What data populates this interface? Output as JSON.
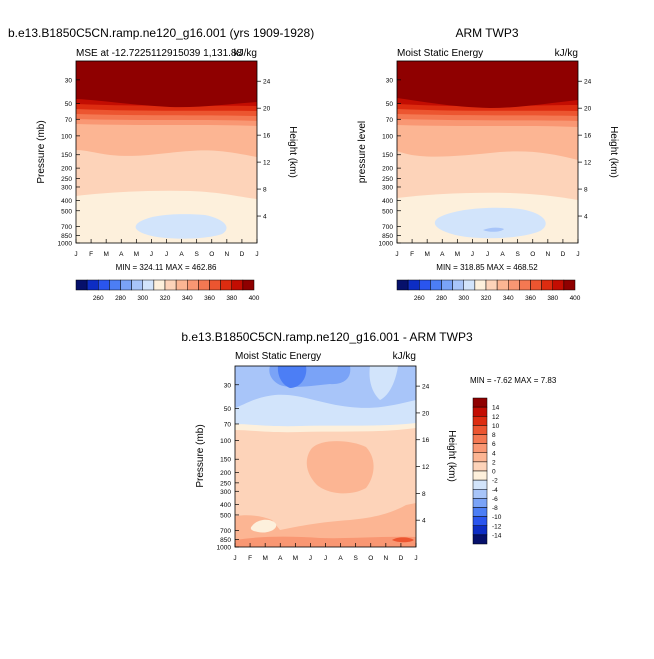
{
  "panels": [
    {
      "id": "model",
      "title": "b.e13.B1850C5CN.ramp.ne120_g16.001 (yrs 1909-1928)",
      "left_label": "MSE at -12.7225112915039 1,131.88",
      "right_label": "kJ/kg",
      "ylabel": "Pressure (mb)",
      "y2label": "Height (km)",
      "minmax": "MIN = 324.11  MAX = 462.86"
    },
    {
      "id": "obs",
      "title": "ARM TWP3",
      "left_label": "Moist Static Energy",
      "right_label": "kJ/kg",
      "ylabel": "pressure level",
      "y2label": "Height (km)",
      "minmax": "MIN = 318.85  MAX = 468.52"
    },
    {
      "id": "diff",
      "title": "b.e13.B1850C5CN.ramp.ne120_g16.001 - ARM TWP3",
      "left_label": "Moist Static Energy",
      "right_label": "kJ/kg",
      "ylabel": "Pressure (mb)",
      "y2label": "Height (km)",
      "minmax": "MIN =  -7.62  MAX =    7.83"
    }
  ],
  "chart_data": [
    {
      "type": "heatmap",
      "title": "b.e13.B1850C5CN.ramp.ne120_g16.001 (yrs 1909-1928)",
      "xlabel": "",
      "ylabel": "Pressure (mb)",
      "y2label": "Height (km)",
      "x_ticks": [
        "J",
        "F",
        "M",
        "A",
        "M",
        "J",
        "J",
        "A",
        "S",
        "O",
        "N",
        "D",
        "J"
      ],
      "y_ticks": [
        30,
        50,
        70,
        100,
        150,
        200,
        250,
        300,
        400,
        500,
        700,
        850,
        1000
      ],
      "y2_ticks": [
        24,
        20,
        16,
        12,
        8,
        4
      ],
      "ylim": [
        1000,
        20
      ],
      "units": "kJ/kg",
      "min": 324.11,
      "max": 462.86,
      "colorbar_levels": [
        260,
        280,
        300,
        320,
        340,
        360,
        380,
        400
      ],
      "colors": [
        "#06106b",
        "#0d2dc4",
        "#2a55ee",
        "#4c7ef5",
        "#7aa3f7",
        "#a8c5f9",
        "#d2e4fb",
        "#fdf0dc",
        "#fdd3b9",
        "#fcb593",
        "#f99773",
        "#f47852",
        "#ec5530",
        "#dd2c10",
        "#c30d02",
        "#8f0000"
      ]
    },
    {
      "type": "heatmap",
      "title": "ARM TWP3",
      "xlabel": "",
      "ylabel": "pressure level",
      "y2label": "Height (km)",
      "x_ticks": [
        "J",
        "F",
        "M",
        "A",
        "M",
        "J",
        "J",
        "A",
        "S",
        "O",
        "N",
        "D",
        "J"
      ],
      "y_ticks": [
        30,
        50,
        70,
        100,
        150,
        200,
        250,
        300,
        400,
        500,
        700,
        850,
        1000
      ],
      "y2_ticks": [
        24,
        20,
        16,
        12,
        8,
        4
      ],
      "ylim": [
        1000,
        20
      ],
      "units": "kJ/kg",
      "min": 318.85,
      "max": 468.52,
      "colorbar_levels": [
        260,
        280,
        300,
        320,
        340,
        360,
        380,
        400
      ],
      "colors": [
        "#06106b",
        "#0d2dc4",
        "#2a55ee",
        "#4c7ef5",
        "#7aa3f7",
        "#a8c5f9",
        "#d2e4fb",
        "#fdf0dc",
        "#fdd3b9",
        "#fcb593",
        "#f99773",
        "#f47852",
        "#ec5530",
        "#dd2c10",
        "#c30d02",
        "#8f0000"
      ]
    },
    {
      "type": "heatmap",
      "title": "b.e13.B1850C5CN.ramp.ne120_g16.001 - ARM TWP3",
      "xlabel": "",
      "ylabel": "Pressure (mb)",
      "y2label": "Height (km)",
      "x_ticks": [
        "J",
        "F",
        "M",
        "A",
        "M",
        "J",
        "J",
        "A",
        "S",
        "O",
        "N",
        "D",
        "J"
      ],
      "y_ticks": [
        30,
        50,
        70,
        100,
        150,
        200,
        250,
        300,
        400,
        500,
        700,
        850,
        1000
      ],
      "y2_ticks": [
        24,
        20,
        16,
        12,
        8,
        4
      ],
      "ylim": [
        1000,
        20
      ],
      "units": "kJ/kg",
      "min": -7.62,
      "max": 7.83,
      "colorbar_levels": [
        14,
        12,
        10,
        8,
        6,
        4,
        2,
        0,
        -2,
        -4,
        -6,
        -8,
        -10,
        -12,
        -14
      ],
      "colors": [
        "#8f0000",
        "#c30d02",
        "#dd2c10",
        "#ec5530",
        "#f47852",
        "#f99773",
        "#fcb593",
        "#fdd3b9",
        "#fdf0dc",
        "#d2e4fb",
        "#a8c5f9",
        "#7aa3f7",
        "#4c7ef5",
        "#2a55ee",
        "#0d2dc4",
        "#06106b"
      ]
    }
  ]
}
